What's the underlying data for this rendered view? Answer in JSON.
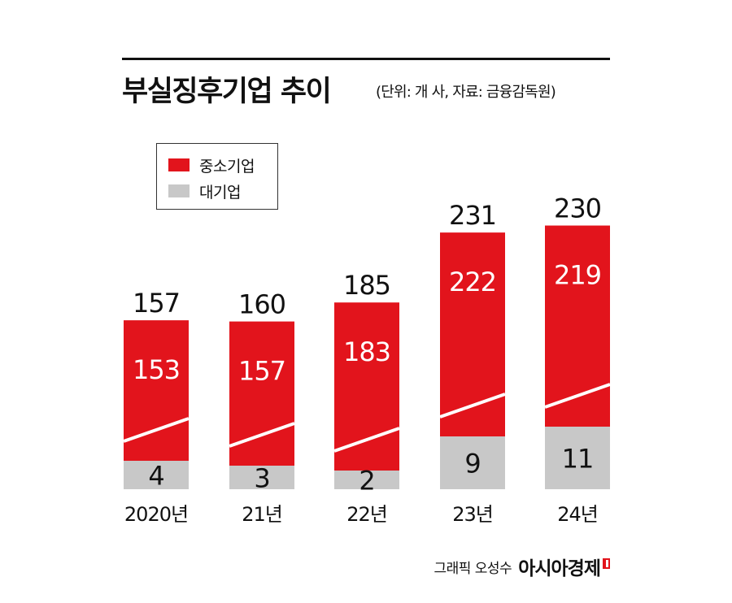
{
  "title": "부실징후기업 추이",
  "subtitle": "(단위: 개 사, 자료: 금융감독원)",
  "credit": "그래픽 오성수",
  "brand": "아시아경제",
  "colors": {
    "sme": "#e2141c",
    "large": "#c8c8c8"
  },
  "chart_data": {
    "type": "bar",
    "stacked": true,
    "categories": [
      "2020년",
      "21년",
      "22년",
      "23년",
      "24년"
    ],
    "series": [
      {
        "name": "대기업",
        "values": [
          4,
          3,
          2,
          9,
          11
        ]
      },
      {
        "name": "중소기업",
        "values": [
          153,
          157,
          183,
          222,
          219
        ]
      }
    ],
    "totals": [
      157,
      160,
      185,
      231,
      230
    ],
    "legend": [
      "중소기업",
      "대기업"
    ],
    "legend_position": "top-left",
    "grid": false
  }
}
